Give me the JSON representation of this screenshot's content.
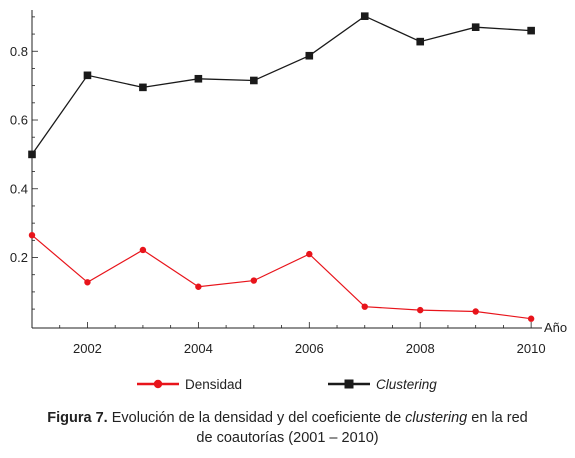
{
  "chart_data": {
    "type": "line",
    "x": [
      2001,
      2002,
      2003,
      2004,
      2005,
      2006,
      2007,
      2008,
      2009,
      2010
    ],
    "series": [
      {
        "name": "Densidad",
        "color": "#e8141b",
        "marker": "circle",
        "values": [
          0.265,
          0.128,
          0.222,
          0.115,
          0.133,
          0.21,
          0.057,
          0.047,
          0.043,
          0.022
        ]
      },
      {
        "name": "Clustering",
        "color": "#1a1a1a",
        "marker": "square",
        "values": [
          0.5,
          0.73,
          0.695,
          0.72,
          0.715,
          0.787,
          0.902,
          0.828,
          0.87,
          0.86
        ]
      }
    ],
    "xlabel": "Año",
    "ylabel": "",
    "xlim": [
      2001,
      2010.25
    ],
    "ylim": [
      -0.005,
      0.92
    ],
    "x_ticks": [
      2002,
      2004,
      2006,
      2008,
      2010
    ],
    "y_ticks": [
      0.2,
      0.4,
      0.6,
      0.8
    ],
    "legend_position": "bottom",
    "grid": false
  },
  "caption": {
    "label": "Figura 7.",
    "text_1": " Evolución de la densidad y del coeficiente de ",
    "emphasis": "clustering",
    "text_2": " en la red",
    "line_2": "de coautorías (2001 – 2010)"
  }
}
